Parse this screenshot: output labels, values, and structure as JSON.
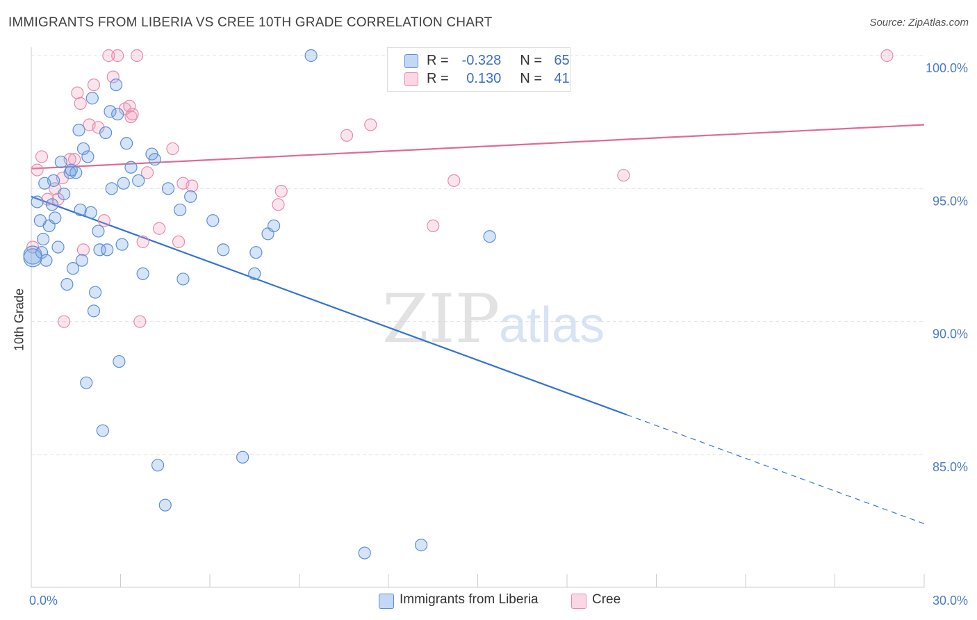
{
  "title": "IMMIGRANTS FROM LIBERIA VS CREE 10TH GRADE CORRELATION CHART",
  "source": "Source: ZipAtlas.com",
  "watermark": {
    "zip": "ZIP",
    "atlas": "atlas"
  },
  "legend": {
    "rows": [
      {
        "r_label": "R =",
        "r_value": "-0.328",
        "n_label": "N =",
        "n_value": "65",
        "color": "#7aa8e8"
      },
      {
        "r_label": "R =",
        "r_value": "0.130",
        "n_label": "N =",
        "n_value": "41",
        "color": "#f3a6c0"
      }
    ]
  },
  "bottom_legend": [
    {
      "label": "Immigrants from Liberia",
      "color": "#7aa8e8"
    },
    {
      "label": "Cree",
      "color": "#f3a6c0"
    }
  ],
  "chart_data": {
    "type": "scatter",
    "title": "IMMIGRANTS FROM LIBERIA VS CREE 10TH GRADE CORRELATION CHART",
    "xlabel": "",
    "ylabel": "10th Grade",
    "xlim": [
      0,
      30
    ],
    "ylim": [
      80.5,
      101
    ],
    "x_tick_labels": [
      "0.0%",
      "30.0%"
    ],
    "y_ticks": [
      85,
      90,
      95,
      100
    ],
    "y_tick_labels": [
      "85.0%",
      "90.0%",
      "95.0%",
      "100.0%"
    ],
    "grid": true,
    "series": [
      {
        "name": "Immigrants from Liberia",
        "color": "#5b8fd6",
        "trend": {
          "x0": 0,
          "y0": 94.7,
          "x1": 20.0,
          "y1": 86.5,
          "dash_to_x": 30.0,
          "dash_to_y": 82.4
        },
        "points": [
          [
            0.05,
            92.5
          ],
          [
            0.2,
            94.5
          ],
          [
            0.3,
            93.8
          ],
          [
            0.35,
            92.6
          ],
          [
            0.4,
            93.1
          ],
          [
            0.45,
            95.2
          ],
          [
            0.5,
            92.3
          ],
          [
            0.6,
            93.6
          ],
          [
            0.7,
            94.4
          ],
          [
            0.75,
            95.3
          ],
          [
            0.8,
            93.9
          ],
          [
            0.9,
            92.8
          ],
          [
            1.0,
            96.0
          ],
          [
            1.1,
            94.8
          ],
          [
            1.2,
            91.4
          ],
          [
            1.3,
            95.6
          ],
          [
            1.35,
            95.7
          ],
          [
            1.4,
            92.0
          ],
          [
            1.5,
            95.6
          ],
          [
            1.6,
            97.2
          ],
          [
            1.65,
            94.2
          ],
          [
            1.7,
            92.3
          ],
          [
            1.75,
            96.5
          ],
          [
            1.85,
            87.7
          ],
          [
            1.9,
            96.2
          ],
          [
            2.0,
            94.1
          ],
          [
            2.05,
            98.4
          ],
          [
            2.1,
            90.4
          ],
          [
            2.15,
            91.1
          ],
          [
            2.25,
            93.4
          ],
          [
            2.3,
            92.7
          ],
          [
            2.4,
            85.9
          ],
          [
            2.5,
            97.1
          ],
          [
            2.55,
            92.7
          ],
          [
            2.65,
            97.9
          ],
          [
            2.7,
            95.0
          ],
          [
            2.85,
            98.9
          ],
          [
            2.9,
            97.8
          ],
          [
            2.95,
            88.5
          ],
          [
            3.1,
            95.2
          ],
          [
            3.05,
            92.9
          ],
          [
            3.2,
            96.7
          ],
          [
            3.35,
            95.8
          ],
          [
            3.6,
            95.3
          ],
          [
            3.75,
            91.8
          ],
          [
            4.05,
            96.3
          ],
          [
            4.15,
            96.1
          ],
          [
            4.25,
            84.6
          ],
          [
            4.5,
            83.1
          ],
          [
            4.6,
            95.0
          ],
          [
            5.0,
            94.2
          ],
          [
            5.1,
            91.6
          ],
          [
            5.35,
            94.7
          ],
          [
            6.1,
            93.8
          ],
          [
            6.45,
            92.7
          ],
          [
            7.1,
            84.9
          ],
          [
            7.5,
            91.8
          ],
          [
            7.55,
            92.6
          ],
          [
            7.95,
            93.3
          ],
          [
            8.15,
            93.6
          ],
          [
            9.4,
            100.0
          ],
          [
            11.2,
            81.3
          ],
          [
            13.1,
            81.6
          ],
          [
            15.4,
            93.2
          ],
          [
            0.05,
            92.4
          ]
        ]
      },
      {
        "name": "Cree",
        "color": "#e88aab",
        "trend": {
          "x0": 0,
          "y0": 95.75,
          "x1": 30.0,
          "y1": 97.4
        },
        "points": [
          [
            0.05,
            92.8
          ],
          [
            0.2,
            95.7
          ],
          [
            0.35,
            96.2
          ],
          [
            0.55,
            94.6
          ],
          [
            0.8,
            95.0
          ],
          [
            0.9,
            94.6
          ],
          [
            1.05,
            95.4
          ],
          [
            1.1,
            90.0
          ],
          [
            1.3,
            96.1
          ],
          [
            1.45,
            96.1
          ],
          [
            1.55,
            98.6
          ],
          [
            1.65,
            98.2
          ],
          [
            1.75,
            92.7
          ],
          [
            1.95,
            97.4
          ],
          [
            2.1,
            98.9
          ],
          [
            2.25,
            97.3
          ],
          [
            2.45,
            93.8
          ],
          [
            2.6,
            100.0
          ],
          [
            2.75,
            99.2
          ],
          [
            2.9,
            100.0
          ],
          [
            3.15,
            98.0
          ],
          [
            3.3,
            98.1
          ],
          [
            3.35,
            97.7
          ],
          [
            3.4,
            97.8
          ],
          [
            3.55,
            100.0
          ],
          [
            3.65,
            90.0
          ],
          [
            3.75,
            93.0
          ],
          [
            3.9,
            95.6
          ],
          [
            4.3,
            93.5
          ],
          [
            4.75,
            96.5
          ],
          [
            4.95,
            93.0
          ],
          [
            5.1,
            95.2
          ],
          [
            5.4,
            95.1
          ],
          [
            8.3,
            94.4
          ],
          [
            8.4,
            94.9
          ],
          [
            10.6,
            97.0
          ],
          [
            11.4,
            97.4
          ],
          [
            13.5,
            93.6
          ],
          [
            14.2,
            95.3
          ],
          [
            19.9,
            95.5
          ],
          [
            28.75,
            100.0
          ]
        ]
      }
    ]
  }
}
